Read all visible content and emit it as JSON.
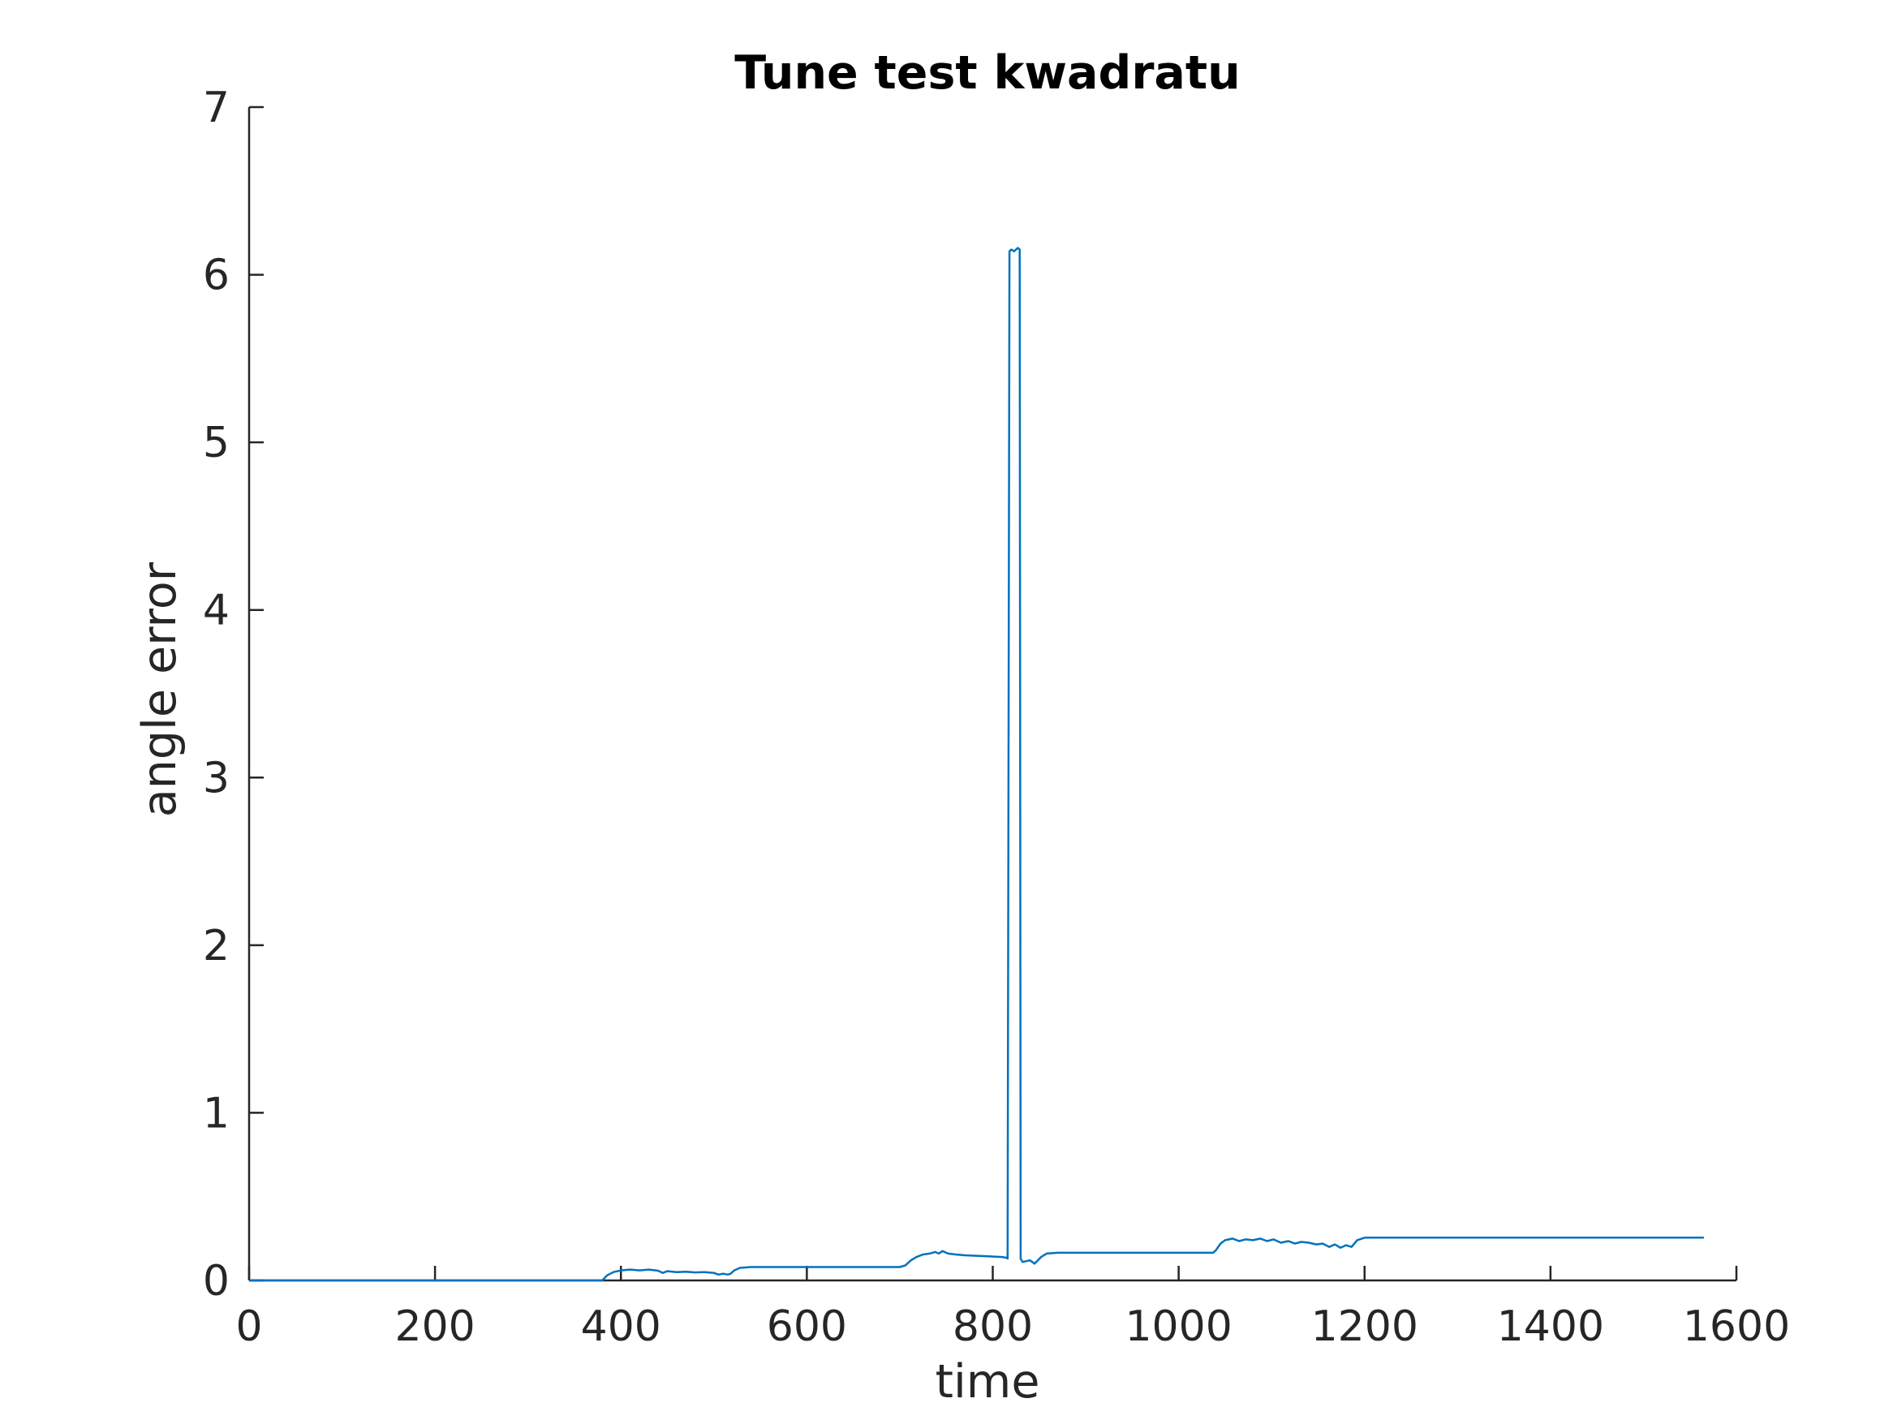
{
  "chart_data": {
    "type": "line",
    "title": "Tune test kwadratu",
    "xlabel": "time",
    "ylabel": "angle error",
    "xlim": [
      0,
      1600
    ],
    "ylim": [
      0,
      7
    ],
    "xticks": [
      0,
      200,
      400,
      600,
      800,
      1000,
      1200,
      1400,
      1600
    ],
    "yticks": [
      0,
      1,
      2,
      3,
      4,
      5,
      6,
      7
    ],
    "xtick_labels": [
      "0",
      "200",
      "400",
      "600",
      "800",
      "1000",
      "1200",
      "1400",
      "1600"
    ],
    "ytick_labels": [
      "0",
      "1",
      "2",
      "3",
      "4",
      "5",
      "6",
      "7"
    ],
    "grid": false,
    "legend": "none",
    "series": [
      {
        "color": "#0072BD",
        "x": [
          0,
          380,
          385,
          392,
          400,
          410,
          420,
          430,
          440,
          445,
          450,
          460,
          470,
          480,
          490,
          500,
          505,
          510,
          515,
          518,
          522,
          528,
          540,
          560,
          600,
          650,
          700,
          706,
          712,
          718,
          725,
          732,
          738,
          742,
          746,
          752,
          760,
          770,
          790,
          810,
          815,
          816,
          818,
          820,
          823,
          827,
          829,
          830,
          832,
          840,
          845,
          852,
          858,
          870,
          950,
          1000,
          1037,
          1040,
          1045,
          1050,
          1058,
          1065,
          1072,
          1080,
          1088,
          1095,
          1102,
          1110,
          1118,
          1125,
          1132,
          1140,
          1148,
          1155,
          1162,
          1168,
          1174,
          1180,
          1186,
          1192,
          1200,
          1300,
          1400,
          1500,
          1565
        ],
        "y": [
          0,
          0,
          0.03,
          0.05,
          0.06,
          0.065,
          0.06,
          0.065,
          0.058,
          0.045,
          0.055,
          0.05,
          0.052,
          0.048,
          0.05,
          0.045,
          0.035,
          0.04,
          0.035,
          0.04,
          0.06,
          0.075,
          0.08,
          0.08,
          0.08,
          0.08,
          0.08,
          0.09,
          0.12,
          0.14,
          0.155,
          0.16,
          0.17,
          0.16,
          0.175,
          0.16,
          0.155,
          0.15,
          0.145,
          0.14,
          0.135,
          0.13,
          6.14,
          6.15,
          6.14,
          6.16,
          6.15,
          0.13,
          0.11,
          0.12,
          0.1,
          0.14,
          0.16,
          0.165,
          0.165,
          0.165,
          0.165,
          0.18,
          0.22,
          0.24,
          0.25,
          0.235,
          0.245,
          0.24,
          0.25,
          0.235,
          0.245,
          0.225,
          0.235,
          0.22,
          0.23,
          0.225,
          0.215,
          0.22,
          0.2,
          0.215,
          0.195,
          0.21,
          0.2,
          0.24,
          0.255,
          0.255,
          0.255,
          0.255,
          0.255
        ]
      }
    ]
  }
}
